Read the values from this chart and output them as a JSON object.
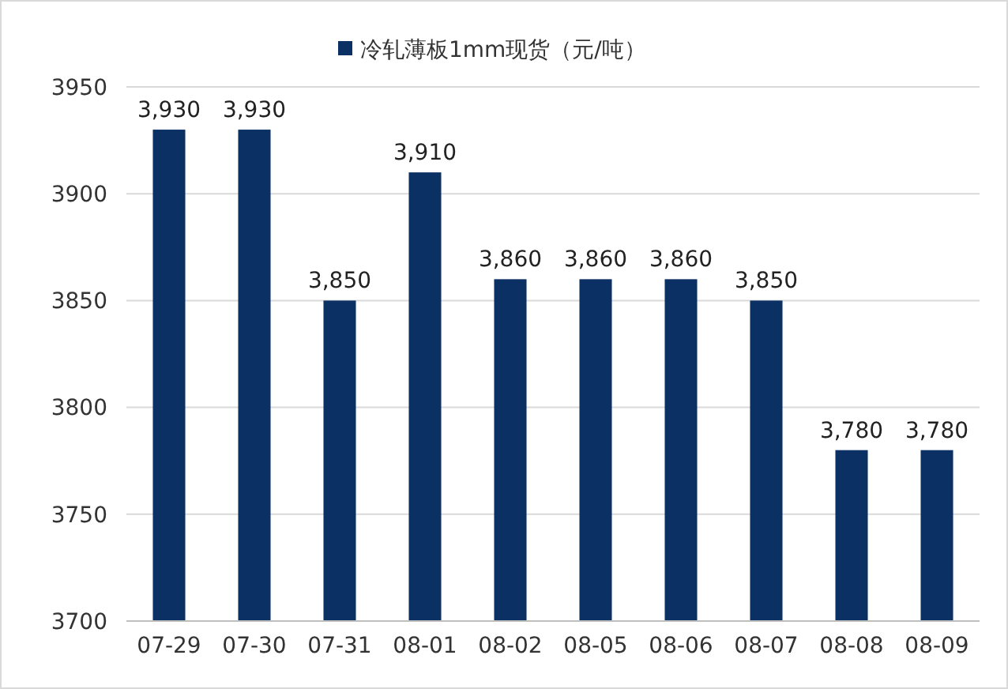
{
  "chart_data": {
    "type": "bar",
    "categories": [
      "07-29",
      "07-30",
      "07-31",
      "08-01",
      "08-02",
      "08-05",
      "08-06",
      "08-07",
      "08-08",
      "08-09"
    ],
    "series": [
      {
        "name": "冷轧薄板1mm现货（元/吨）",
        "color": "#0b3064",
        "values": [
          3930,
          3930,
          3850,
          3910,
          3860,
          3860,
          3860,
          3850,
          3780,
          3780
        ],
        "value_labels": [
          "3,930",
          "3,930",
          "3,850",
          "3,910",
          "3,860",
          "3,860",
          "3,860",
          "3,850",
          "3,780",
          "3,780"
        ]
      }
    ],
    "ylim": [
      3700,
      3950
    ],
    "yticks": [
      3700,
      3750,
      3800,
      3850,
      3900,
      3950
    ],
    "grid": "y",
    "legend": "top"
  }
}
